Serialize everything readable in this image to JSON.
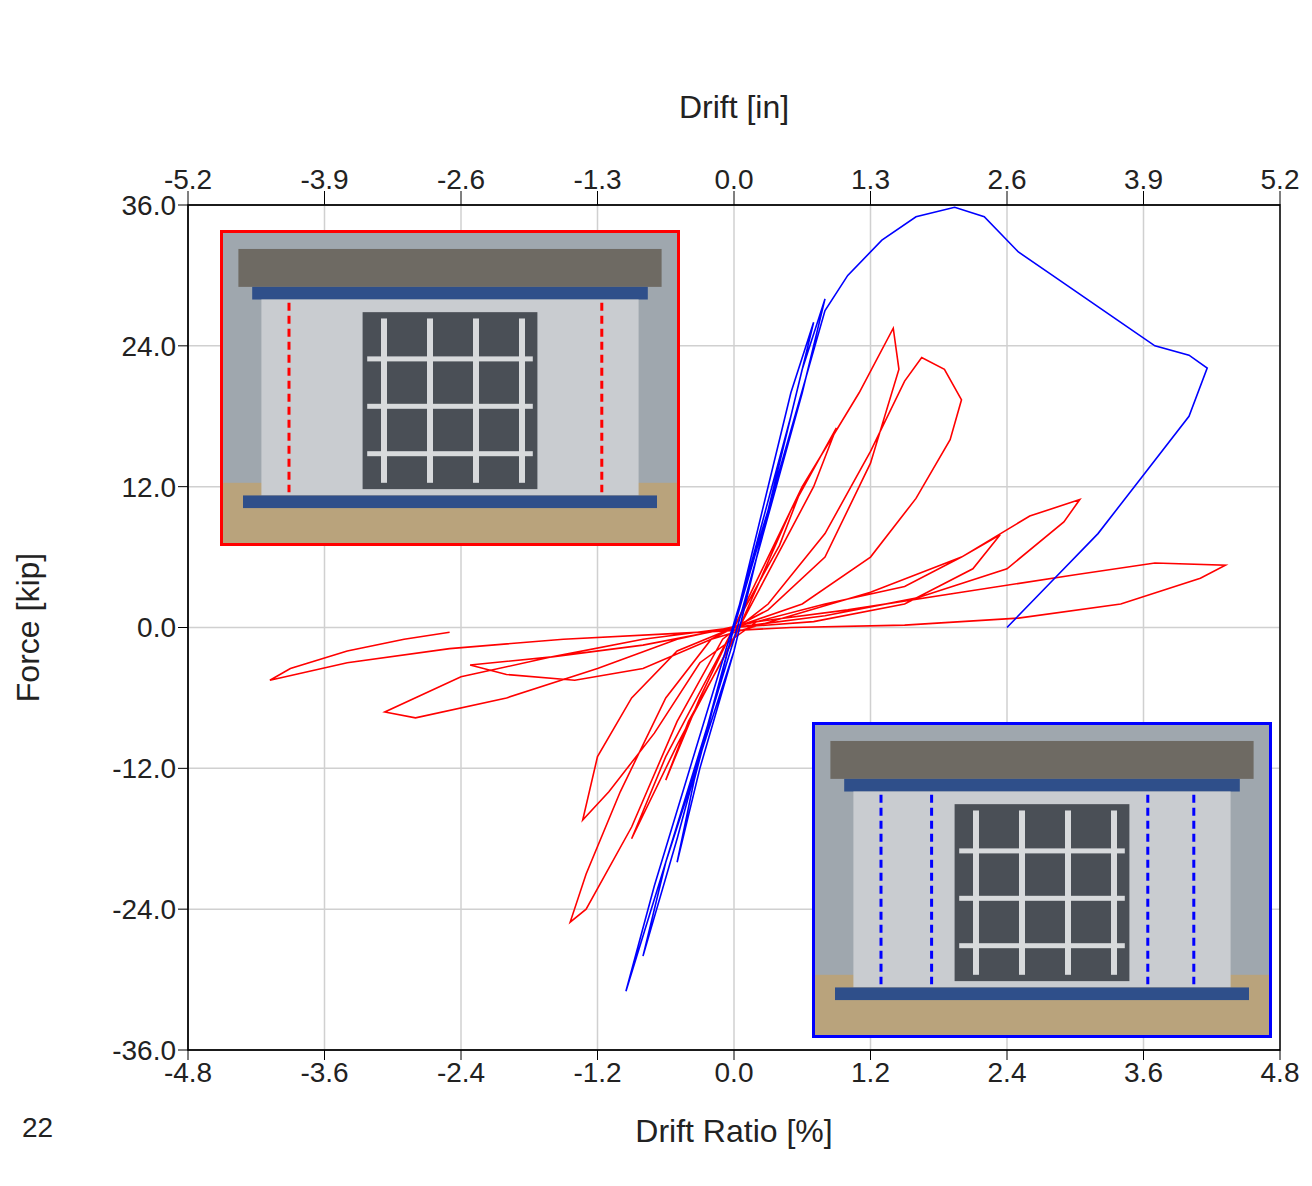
{
  "chart_data": {
    "type": "line",
    "x_label": "Drift Ratio [%]",
    "y_label": "Force [kip]",
    "x2_label": "Drift [in]",
    "page_label": "22",
    "grid": true,
    "xlim": [
      -4.8,
      4.8
    ],
    "xticks": [
      -4.8,
      -3.6,
      -2.4,
      -1.2,
      {
        "value": 0,
        "label": "0.0"
      },
      1.2,
      2.4,
      3.6,
      4.8
    ],
    "x2lim": [
      -5.2,
      5.2
    ],
    "x2ticks": [
      -5.2,
      -3.9,
      -2.6,
      -1.3,
      {
        "value": 0,
        "label": "0.0"
      },
      1.3,
      2.6,
      3.9,
      5.2
    ],
    "ylim": [
      -36,
      36
    ],
    "yticks": [
      {
        "value": -36,
        "label": "-36.0"
      },
      {
        "value": -24,
        "label": "-24.0"
      },
      {
        "value": -12,
        "label": "-12.0"
      },
      {
        "value": 0,
        "label": "0.0"
      },
      {
        "value": 12,
        "label": "12.0"
      },
      {
        "value": 24,
        "label": "24.0"
      },
      {
        "value": 36,
        "label": "36.0"
      }
    ],
    "series": [
      {
        "color": "#ff0000",
        "x": [
          0,
          0.3,
          0.6,
          0.4,
          0,
          -0.3,
          -0.6,
          -0.4,
          0,
          0.5,
          0.9,
          0.7,
          0.1,
          -0.5,
          -0.9,
          -0.6,
          0,
          0.6,
          1.1,
          1.4,
          1.45,
          1.2,
          0.8,
          0.3,
          -0.2,
          -0.6,
          -1.0,
          -1.3,
          -1.44,
          -1.3,
          -0.9,
          -0.5,
          -0.1,
          0.3,
          0.8,
          1.2,
          1.5,
          1.65,
          1.85,
          2.0,
          1.9,
          1.6,
          1.2,
          0.6,
          0,
          -0.5,
          -0.9,
          -1.2,
          -1.33,
          -1.1,
          -0.7,
          -0.3,
          0.2,
          0.8,
          1.5,
          2.0,
          2.34,
          2.1,
          1.5,
          0.7,
          0,
          -0.8,
          -1.6,
          -2.32,
          -2.0,
          -1.4,
          -0.8,
          -0.2,
          0.5,
          1.2,
          2.0,
          2.6,
          3.04,
          2.9,
          2.4,
          1.6,
          0.8,
          0,
          -0.8,
          -1.6,
          -2.4,
          -3.07,
          -2.8,
          -2.0,
          -1.2,
          -0.5,
          0.2,
          1.0,
          2.0,
          3.0,
          3.7,
          4.32,
          4.1,
          3.4,
          2.5,
          1.5,
          0.5,
          -0.5,
          -1.5,
          -2.5,
          -3.4,
          -4.08,
          -3.9,
          -3.4,
          -2.9,
          -2.5
        ],
        "values": [
          0,
          6,
          12,
          7,
          0,
          -6,
          -13,
          -8,
          -1,
          10,
          17,
          12,
          1,
          -10,
          -18,
          -11,
          0,
          12,
          20,
          25.5,
          22,
          14,
          6,
          1.5,
          -1,
          -6,
          -14,
          -21,
          -25.1,
          -24,
          -17,
          -8,
          -1,
          2,
          8,
          15,
          21,
          23,
          22,
          19.4,
          16,
          11,
          6,
          2,
          0,
          -2,
          -6,
          -11,
          -16.4,
          -14,
          -9,
          -3,
          0.5,
          2,
          3.5,
          6,
          7.9,
          5,
          2,
          0.5,
          0,
          -1.5,
          -2.5,
          -3.2,
          -4,
          -4.5,
          -3.5,
          -1,
          1,
          3,
          6,
          9.5,
          10.9,
          9,
          5,
          2.5,
          1,
          0,
          -1,
          -2.5,
          -4.2,
          -7.2,
          -7.7,
          -6,
          -3.5,
          -1,
          0.5,
          1.5,
          3,
          4.5,
          5.5,
          5.3,
          4.2,
          2,
          0.8,
          0.2,
          0,
          -0.5,
          -1,
          -1.8,
          -3,
          -4.5,
          -3.5,
          -2,
          -1,
          -0.4
        ]
      },
      {
        "color": "#0000ff",
        "x": [
          0,
          0.3,
          0.5,
          0.35,
          0,
          -0.3,
          -0.5,
          -0.35,
          0,
          0.5,
          0.7,
          0.5,
          0,
          -0.5,
          -0.8,
          -0.6,
          0,
          0.6,
          0.8,
          0.6,
          0,
          -0.6,
          -0.95,
          -0.7,
          -0.2,
          0.3,
          0.8,
          1.0,
          1.3,
          1.6,
          1.94,
          2.2,
          2.5,
          2.8,
          3.1,
          3.4,
          3.7,
          4.0,
          4.16,
          4.0,
          3.6,
          3.2,
          2.8,
          2.4
        ],
        "values": [
          0,
          10,
          18,
          12,
          -2,
          -12,
          -20,
          -13,
          0,
          20,
          26,
          18,
          0,
          -18,
          -28,
          -20,
          -2,
          22,
          28,
          20,
          -1,
          -20,
          -31,
          -22,
          -6,
          10,
          27,
          30,
          33,
          35,
          35.8,
          35,
          32,
          30,
          28,
          26,
          24,
          23.2,
          22.1,
          18,
          13,
          8,
          4,
          0
        ]
      }
    ]
  }
}
